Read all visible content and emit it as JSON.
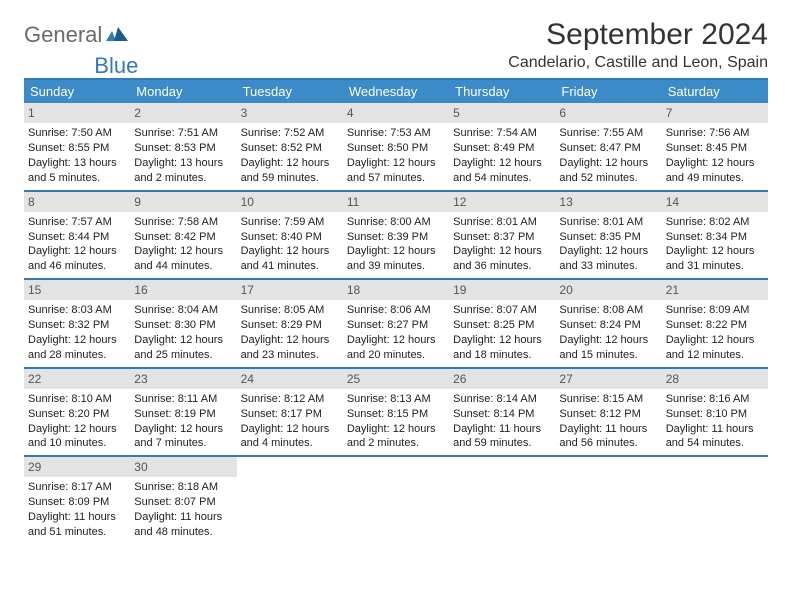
{
  "logo": {
    "text1": "General",
    "text2": "Blue"
  },
  "title": "September 2024",
  "location": "Candelario, Castille and Leon, Spain",
  "colors": {
    "accent": "#3b8bc9",
    "border": "#2f7bbf",
    "daynum_bg": "#e3e3e3",
    "logo_gray": "#6b6b6b",
    "logo_blue": "#2f7bbf"
  },
  "daysOfWeek": [
    "Sunday",
    "Monday",
    "Tuesday",
    "Wednesday",
    "Thursday",
    "Friday",
    "Saturday"
  ],
  "weeks": [
    [
      {
        "n": "1",
        "sr": "7:50 AM",
        "ss": "8:55 PM",
        "dl": "13 hours and 5 minutes."
      },
      {
        "n": "2",
        "sr": "7:51 AM",
        "ss": "8:53 PM",
        "dl": "13 hours and 2 minutes."
      },
      {
        "n": "3",
        "sr": "7:52 AM",
        "ss": "8:52 PM",
        "dl": "12 hours and 59 minutes."
      },
      {
        "n": "4",
        "sr": "7:53 AM",
        "ss": "8:50 PM",
        "dl": "12 hours and 57 minutes."
      },
      {
        "n": "5",
        "sr": "7:54 AM",
        "ss": "8:49 PM",
        "dl": "12 hours and 54 minutes."
      },
      {
        "n": "6",
        "sr": "7:55 AM",
        "ss": "8:47 PM",
        "dl": "12 hours and 52 minutes."
      },
      {
        "n": "7",
        "sr": "7:56 AM",
        "ss": "8:45 PM",
        "dl": "12 hours and 49 minutes."
      }
    ],
    [
      {
        "n": "8",
        "sr": "7:57 AM",
        "ss": "8:44 PM",
        "dl": "12 hours and 46 minutes."
      },
      {
        "n": "9",
        "sr": "7:58 AM",
        "ss": "8:42 PM",
        "dl": "12 hours and 44 minutes."
      },
      {
        "n": "10",
        "sr": "7:59 AM",
        "ss": "8:40 PM",
        "dl": "12 hours and 41 minutes."
      },
      {
        "n": "11",
        "sr": "8:00 AM",
        "ss": "8:39 PM",
        "dl": "12 hours and 39 minutes."
      },
      {
        "n": "12",
        "sr": "8:01 AM",
        "ss": "8:37 PM",
        "dl": "12 hours and 36 minutes."
      },
      {
        "n": "13",
        "sr": "8:01 AM",
        "ss": "8:35 PM",
        "dl": "12 hours and 33 minutes."
      },
      {
        "n": "14",
        "sr": "8:02 AM",
        "ss": "8:34 PM",
        "dl": "12 hours and 31 minutes."
      }
    ],
    [
      {
        "n": "15",
        "sr": "8:03 AM",
        "ss": "8:32 PM",
        "dl": "12 hours and 28 minutes."
      },
      {
        "n": "16",
        "sr": "8:04 AM",
        "ss": "8:30 PM",
        "dl": "12 hours and 25 minutes."
      },
      {
        "n": "17",
        "sr": "8:05 AM",
        "ss": "8:29 PM",
        "dl": "12 hours and 23 minutes."
      },
      {
        "n": "18",
        "sr": "8:06 AM",
        "ss": "8:27 PM",
        "dl": "12 hours and 20 minutes."
      },
      {
        "n": "19",
        "sr": "8:07 AM",
        "ss": "8:25 PM",
        "dl": "12 hours and 18 minutes."
      },
      {
        "n": "20",
        "sr": "8:08 AM",
        "ss": "8:24 PM",
        "dl": "12 hours and 15 minutes."
      },
      {
        "n": "21",
        "sr": "8:09 AM",
        "ss": "8:22 PM",
        "dl": "12 hours and 12 minutes."
      }
    ],
    [
      {
        "n": "22",
        "sr": "8:10 AM",
        "ss": "8:20 PM",
        "dl": "12 hours and 10 minutes."
      },
      {
        "n": "23",
        "sr": "8:11 AM",
        "ss": "8:19 PM",
        "dl": "12 hours and 7 minutes."
      },
      {
        "n": "24",
        "sr": "8:12 AM",
        "ss": "8:17 PM",
        "dl": "12 hours and 4 minutes."
      },
      {
        "n": "25",
        "sr": "8:13 AM",
        "ss": "8:15 PM",
        "dl": "12 hours and 2 minutes."
      },
      {
        "n": "26",
        "sr": "8:14 AM",
        "ss": "8:14 PM",
        "dl": "11 hours and 59 minutes."
      },
      {
        "n": "27",
        "sr": "8:15 AM",
        "ss": "8:12 PM",
        "dl": "11 hours and 56 minutes."
      },
      {
        "n": "28",
        "sr": "8:16 AM",
        "ss": "8:10 PM",
        "dl": "11 hours and 54 minutes."
      }
    ],
    [
      {
        "n": "29",
        "sr": "8:17 AM",
        "ss": "8:09 PM",
        "dl": "11 hours and 51 minutes."
      },
      {
        "n": "30",
        "sr": "8:18 AM",
        "ss": "8:07 PM",
        "dl": "11 hours and 48 minutes."
      },
      null,
      null,
      null,
      null,
      null
    ]
  ],
  "labels": {
    "sunrise": "Sunrise:",
    "sunset": "Sunset:",
    "daylight": "Daylight:"
  }
}
